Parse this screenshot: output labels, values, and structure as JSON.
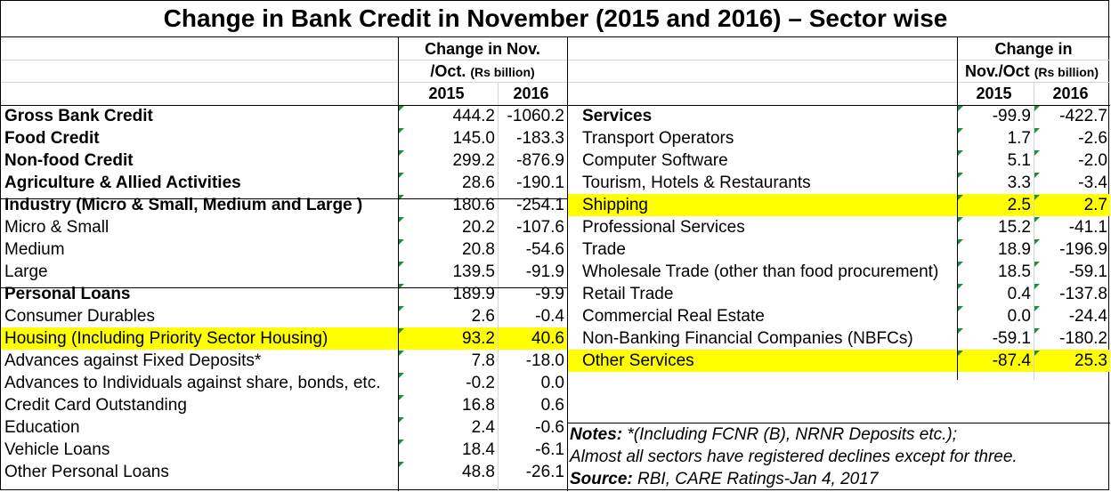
{
  "title": "Change in Bank Credit in November (2015 and 2016) – Sector wise",
  "left_header": {
    "line1": "Change in Nov.",
    "line2_main": "/Oct.",
    "line2_unit": "(Rs billion)",
    "years": [
      "2015",
      "2016"
    ]
  },
  "right_header": {
    "line1": "Change in",
    "line2_main": "Nov./Oct",
    "line2_unit": "(Rs billion)",
    "years": [
      "2015",
      "2016"
    ]
  },
  "left_rows": [
    {
      "label": "Gross Bank Credit",
      "v2015": "444.2",
      "v2016": "-1060.2",
      "bold": true
    },
    {
      "label": "Food Credit",
      "v2015": "145.0",
      "v2016": "-183.3",
      "bold": true
    },
    {
      "label": "Non-food Credit",
      "v2015": "299.2",
      "v2016": "-876.9",
      "bold": true
    },
    {
      "label": "Agriculture & Allied Activities",
      "v2015": "28.6",
      "v2016": "-190.1",
      "bold": true
    },
    {
      "label": "Industry (Micro & Small, Medium and Large )",
      "v2015": "180.6",
      "v2016": "-254.1",
      "bold": true
    },
    {
      "label": "Micro & Small",
      "v2015": "20.2",
      "v2016": "-107.6"
    },
    {
      "label": "Medium",
      "v2015": "20.8",
      "v2016": "-54.6"
    },
    {
      "label": "Large",
      "v2015": "139.5",
      "v2016": "-91.9"
    },
    {
      "label": "Personal Loans",
      "v2015": "189.9",
      "v2016": "-9.9",
      "bold": true
    },
    {
      "label": "Consumer Durables",
      "v2015": "2.6",
      "v2016": "-0.4"
    },
    {
      "label": "Housing (Including Priority Sector Housing)",
      "v2015": "93.2",
      "v2016": "40.6",
      "highlight": true
    },
    {
      "label": "Advances against Fixed Deposits*",
      "v2015": "7.8",
      "v2016": "-18.0"
    },
    {
      "label": "Advances to Individuals against share, bonds, etc.",
      "v2015": "-0.2",
      "v2016": "0.0"
    },
    {
      "label": "Credit Card Outstanding",
      "v2015": "16.8",
      "v2016": "0.6"
    },
    {
      "label": "Education",
      "v2015": "2.4",
      "v2016": "-0.6"
    },
    {
      "label": "Vehicle Loans",
      "v2015": "18.4",
      "v2016": "-6.1"
    },
    {
      "label": "Other Personal Loans",
      "v2015": "48.8",
      "v2016": "-26.1"
    }
  ],
  "right_rows": [
    {
      "label": "Services",
      "v2015": "-99.9",
      "v2016": "-422.7",
      "bold": true
    },
    {
      "label": "Transport Operators",
      "v2015": "1.7",
      "v2016": "-2.6"
    },
    {
      "label": "Computer Software",
      "v2015": "5.1",
      "v2016": "-2.0"
    },
    {
      "label": "Tourism, Hotels & Restaurants",
      "v2015": "3.3",
      "v2016": "-3.4"
    },
    {
      "label": "Shipping",
      "v2015": "2.5",
      "v2016": "2.7",
      "highlight": true
    },
    {
      "label": "Professional Services",
      "v2015": "15.2",
      "v2016": "-41.1"
    },
    {
      "label": "Trade",
      "v2015": "18.9",
      "v2016": "-196.9"
    },
    {
      "label": "Wholesale Trade (other than food procurement)",
      "v2015": "18.5",
      "v2016": "-59.1"
    },
    {
      "label": "Retail Trade",
      "v2015": "0.4",
      "v2016": "-137.8"
    },
    {
      "label": "Commercial Real Estate",
      "v2015": "0.0",
      "v2016": "-24.4"
    },
    {
      "label": "Non-Banking Financial Companies (NBFCs)",
      "v2015": "-59.1",
      "v2016": "-180.2"
    },
    {
      "label": "Other Services",
      "v2015": "-87.4",
      "v2016": "25.3",
      "highlight": true
    }
  ],
  "notes": {
    "label": "Notes:",
    "text1": "*(Including FCNR (B), NRNR Deposits etc.);",
    "text2": "Almost all sectors have registered declines except for three.",
    "source_label": "Source:",
    "source_text": "RBI, CARE Ratings-Jan 4, 2017"
  },
  "colors": {
    "highlight": "#ffff00",
    "cell_marker": "#1e8e3e",
    "grid": "#d4d4d4"
  }
}
